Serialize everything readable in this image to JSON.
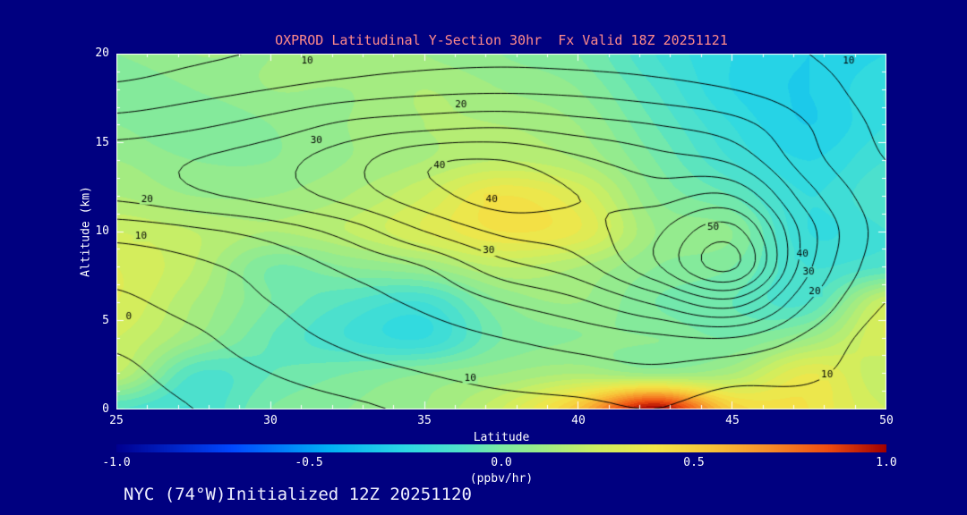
{
  "title": "OXPROD Latitudinal Y-Section 30hr  Fx Valid 18Z 20251121",
  "footer": "NYC (74°W)Initialized 12Z 20251120",
  "colors": {
    "background": "#000080",
    "title_text": "#ff8a8a",
    "axis_text": "#ffffff",
    "footer_text": "#f0f0ff",
    "contour_line": "#000000",
    "frame": "#ffffff"
  },
  "axes": {
    "x": {
      "label": "Latitude",
      "min": 25,
      "max": 50,
      "ticks": [
        25,
        30,
        35,
        40,
        45,
        50
      ],
      "minor_step": 1
    },
    "y": {
      "label": "Altitude (km)",
      "min": 0,
      "max": 20,
      "ticks": [
        0,
        5,
        10,
        15,
        20
      ],
      "minor_step": 1
    }
  },
  "colorbar": {
    "label": "(ppbv/hr)",
    "min": -1.0,
    "max": 1.0,
    "ticks": [
      "-1.0",
      "-0.5",
      "0.0",
      "0.5",
      "1.0"
    ],
    "stops": [
      [
        -1.0,
        "#000090"
      ],
      [
        -0.7,
        "#0048ff"
      ],
      [
        -0.45,
        "#00b0f4"
      ],
      [
        -0.25,
        "#2cd8e4"
      ],
      [
        -0.1,
        "#52e2c8"
      ],
      [
        0.0,
        "#7ceaa2"
      ],
      [
        0.12,
        "#a2ec82"
      ],
      [
        0.25,
        "#ceee60"
      ],
      [
        0.4,
        "#f2e648"
      ],
      [
        0.55,
        "#f8c238"
      ],
      [
        0.7,
        "#f68c28"
      ],
      [
        0.85,
        "#ee4c10"
      ],
      [
        1.0,
        "#a00000"
      ]
    ]
  },
  "chart_data": {
    "type": "heatmap",
    "title": "OXPROD Latitudinal Y-Section 30hr  Fx Valid 18Z 20251121",
    "xlabel": "Latitude",
    "ylabel": "Altitude (km)",
    "xlim": [
      25,
      50
    ],
    "ylim": [
      0,
      20
    ],
    "fill_units": "ppbv/hr",
    "fill_range": [
      -1.0,
      1.0
    ],
    "fill_band_step": 0.05,
    "x": [
      25,
      27.5,
      30,
      32.5,
      35,
      37.5,
      40,
      42.5,
      45,
      47.5,
      50
    ],
    "y": [
      0,
      2,
      4,
      6,
      8,
      10,
      12,
      14,
      16,
      18,
      20
    ],
    "fill_field": [
      [
        -0.1,
        -0.15,
        0.0,
        0.05,
        0.1,
        0.25,
        0.55,
        1.0,
        0.5,
        0.4,
        0.25
      ],
      [
        0.2,
        -0.1,
        -0.05,
        0.0,
        0.05,
        0.1,
        0.15,
        0.1,
        0.15,
        0.35,
        0.2
      ],
      [
        0.25,
        0.1,
        -0.05,
        -0.15,
        -0.2,
        0.0,
        0.05,
        0.05,
        0.0,
        0.1,
        0.3
      ],
      [
        0.3,
        0.15,
        0.0,
        -0.1,
        -0.15,
        0.05,
        0.1,
        0.0,
        -0.05,
        -0.1,
        0.25
      ],
      [
        0.3,
        0.2,
        0.0,
        0.05,
        0.1,
        0.2,
        0.15,
        0.05,
        0.0,
        -0.15,
        -0.1
      ],
      [
        0.25,
        0.2,
        0.15,
        0.2,
        0.3,
        0.4,
        0.35,
        0.1,
        0.05,
        -0.2,
        -0.15
      ],
      [
        0.15,
        0.1,
        0.1,
        0.15,
        0.25,
        0.4,
        0.3,
        0.05,
        -0.05,
        -0.2,
        -0.1
      ],
      [
        0.1,
        0.05,
        0.05,
        0.1,
        0.15,
        0.2,
        0.15,
        0.0,
        -0.15,
        -0.25,
        -0.15
      ],
      [
        0.05,
        0.0,
        0.05,
        0.1,
        0.15,
        0.15,
        0.1,
        -0.05,
        -0.2,
        -0.3,
        -0.2
      ],
      [
        0.0,
        0.05,
        0.1,
        0.1,
        0.15,
        0.1,
        0.05,
        -0.1,
        -0.25,
        -0.3,
        -0.2
      ],
      [
        0.05,
        0.1,
        0.1,
        0.15,
        0.1,
        0.05,
        0.0,
        -0.15,
        -0.25,
        -0.3,
        -0.25
      ]
    ],
    "contour_levels": [
      -10,
      -5,
      0,
      5,
      10,
      15,
      20,
      25,
      30,
      35,
      40,
      45,
      50,
      55
    ],
    "contour_interval": 5,
    "contour_field": [
      [
        -2,
        0,
        2,
        4,
        6,
        8,
        9,
        10,
        8,
        8,
        5
      ],
      [
        -1,
        2,
        5,
        8,
        10,
        12,
        13,
        14,
        12,
        11,
        7
      ],
      [
        1,
        4,
        8,
        11,
        13,
        15,
        17,
        19,
        20,
        14,
        8
      ],
      [
        4,
        7,
        10,
        13,
        16,
        20,
        24,
        31,
        38,
        20,
        10
      ],
      [
        7,
        9,
        12,
        16,
        20,
        28,
        33,
        44,
        56,
        26,
        12
      ],
      [
        12,
        14,
        17,
        22,
        30,
        36,
        38,
        44,
        52,
        27,
        13
      ],
      [
        21,
        24,
        27,
        32,
        38,
        42,
        40,
        38,
        40,
        22,
        12
      ],
      [
        23,
        25,
        28,
        33,
        39,
        40,
        36,
        32,
        29,
        17,
        10
      ],
      [
        17,
        19,
        22,
        26,
        28,
        29,
        27,
        25,
        22,
        15,
        9
      ],
      [
        11,
        13,
        15,
        17,
        18.5,
        19,
        18.5,
        17,
        15,
        12,
        8
      ],
      [
        7,
        9,
        10.5,
        12,
        13,
        13.5,
        13,
        12.5,
        11.5,
        10,
        8
      ]
    ],
    "contour_labels": [
      {
        "lat": 31.2,
        "alt": 19.6,
        "text": "10"
      },
      {
        "lat": 48.8,
        "alt": 19.6,
        "text": "10"
      },
      {
        "lat": 36.2,
        "alt": 17.1,
        "text": "20"
      },
      {
        "lat": 31.5,
        "alt": 15.1,
        "text": "30"
      },
      {
        "lat": 35.5,
        "alt": 13.7,
        "text": "40"
      },
      {
        "lat": 37.2,
        "alt": 11.8,
        "text": "40"
      },
      {
        "lat": 26.0,
        "alt": 11.8,
        "text": "20"
      },
      {
        "lat": 25.8,
        "alt": 9.7,
        "text": "10"
      },
      {
        "lat": 25.4,
        "alt": 5.2,
        "text": "0"
      },
      {
        "lat": 37.1,
        "alt": 8.9,
        "text": "30"
      },
      {
        "lat": 44.4,
        "alt": 10.2,
        "text": "50"
      },
      {
        "lat": 47.3,
        "alt": 8.7,
        "text": "40"
      },
      {
        "lat": 47.5,
        "alt": 7.7,
        "text": "30"
      },
      {
        "lat": 47.7,
        "alt": 6.6,
        "text": "20"
      },
      {
        "lat": 36.5,
        "alt": 1.7,
        "text": "10"
      },
      {
        "lat": 48.1,
        "alt": 1.9,
        "text": "10"
      }
    ]
  }
}
